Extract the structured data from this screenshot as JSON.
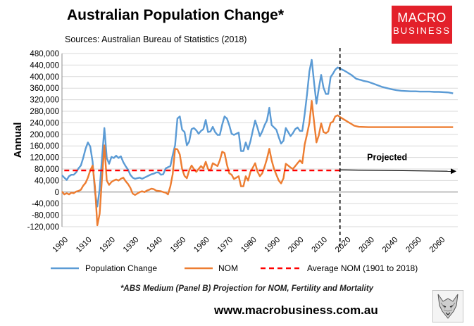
{
  "title": "Australian Population Change*",
  "sources": "Sources: Australian Bureau of Statistics (2018)",
  "logo": {
    "line1": "MACRO",
    "line2": "BUSINESS",
    "color": "#e3202a"
  },
  "footnote": "*ABS Medium (Panel B) Projection for NOM, Fertility and Mortality",
  "url": "www.macrobusiness.com.au",
  "chart_data": {
    "type": "line",
    "ylabel": "Annual",
    "xlim": [
      1900,
      2068
    ],
    "ylim": [
      -120000,
      480000
    ],
    "yticks": [
      -120000,
      -80000,
      -40000,
      0,
      40000,
      80000,
      120000,
      160000,
      200000,
      240000,
      280000,
      320000,
      360000,
      400000,
      440000,
      480000
    ],
    "ytick_labels": [
      "-120,000",
      "-80,000",
      "-40,000",
      "0",
      "40,000",
      "80,000",
      "120,000",
      "160,000",
      "200,000",
      "240,000",
      "280,000",
      "320,000",
      "360,000",
      "400,000",
      "440,000",
      "480,000"
    ],
    "xticks": [
      1900,
      1910,
      1920,
      1930,
      1940,
      1950,
      1960,
      1970,
      1980,
      1990,
      2000,
      2010,
      2020,
      2030,
      2040,
      2050,
      2060
    ],
    "grid": true,
    "legend_placement": "bottom",
    "vertical_line_year": 2018,
    "annotation": {
      "text": "Projected",
      "arrow_from": [
        2018,
        72000
      ],
      "arrow_to": [
        2068,
        72000
      ]
    },
    "series": [
      {
        "name": "Population Change",
        "color": "#5b9bd5",
        "x": [
          1900,
          1901,
          1902,
          1903,
          1904,
          1905,
          1906,
          1907,
          1908,
          1909,
          1910,
          1911,
          1912,
          1913,
          1914,
          1915,
          1916,
          1917,
          1918,
          1919,
          1920,
          1921,
          1922,
          1923,
          1924,
          1925,
          1926,
          1927,
          1928,
          1929,
          1930,
          1931,
          1932,
          1933,
          1934,
          1935,
          1936,
          1937,
          1938,
          1939,
          1940,
          1941,
          1942,
          1943,
          1944,
          1945,
          1946,
          1947,
          1948,
          1949,
          1950,
          1951,
          1952,
          1953,
          1954,
          1955,
          1956,
          1957,
          1958,
          1959,
          1960,
          1961,
          1962,
          1963,
          1964,
          1965,
          1966,
          1967,
          1968,
          1969,
          1970,
          1971,
          1972,
          1973,
          1974,
          1975,
          1976,
          1977,
          1978,
          1979,
          1980,
          1981,
          1982,
          1983,
          1984,
          1985,
          1986,
          1987,
          1988,
          1989,
          1990,
          1991,
          1992,
          1993,
          1994,
          1995,
          1996,
          1997,
          1998,
          1999,
          2000,
          2001,
          2002,
          2003,
          2004,
          2005,
          2006,
          2007,
          2008,
          2009,
          2010,
          2011,
          2012,
          2013,
          2014,
          2015,
          2016,
          2017,
          2018,
          2019,
          2020,
          2021,
          2022,
          2023,
          2024,
          2025,
          2026,
          2027,
          2028,
          2030,
          2032,
          2034,
          2036,
          2038,
          2040,
          2042,
          2044,
          2046,
          2048,
          2050,
          2052,
          2054,
          2056,
          2058,
          2060,
          2062,
          2064,
          2066
        ],
        "y": [
          58000,
          50000,
          42000,
          55000,
          60000,
          60000,
          68000,
          82000,
          92000,
          118000,
          150000,
          172000,
          158000,
          105000,
          0,
          -50000,
          10000,
          120000,
          222000,
          118000,
          98000,
          122000,
          118000,
          126000,
          118000,
          124000,
          104000,
          90000,
          78000,
          60000,
          50000,
          46000,
          48000,
          50000,
          46000,
          50000,
          54000,
          58000,
          62000,
          64000,
          68000,
          68000,
          60000,
          62000,
          82000,
          86000,
          90000,
          128000,
          162000,
          255000,
          262000,
          216000,
          208000,
          162000,
          175000,
          218000,
          222000,
          214000,
          202000,
          212000,
          218000,
          250000,
          208000,
          210000,
          226000,
          208000,
          198000,
          198000,
          234000,
          262000,
          255000,
          232000,
          202000,
          198000,
          202000,
          206000,
          142000,
          142000,
          172000,
          148000,
          176000,
          214000,
          248000,
          222000,
          194000,
          210000,
          232000,
          248000,
          292000,
          232000,
          224000,
          216000,
          190000,
          168000,
          178000,
          222000,
          208000,
          194000,
          204000,
          218000,
          224000,
          212000,
          212000,
          270000,
          338000,
          418000,
          458000,
          380000,
          306000,
          358000,
          406000,
          362000,
          340000,
          340000,
          398000,
          410000,
          424000,
          432000,
          428000,
          424000,
          420000,
          415000,
          410000,
          405000,
          398000,
          392000,
          390000,
          388000,
          385000,
          382000,
          376000,
          370000,
          364000,
          360000,
          356000,
          353000,
          351000,
          350000,
          349000,
          349000,
          348000,
          348000,
          348000,
          347000,
          347000,
          346000,
          345000,
          342000
        ]
      },
      {
        "name": "NOM",
        "color": "#ed7d31",
        "x": [
          1900,
          1901,
          1902,
          1903,
          1904,
          1905,
          1906,
          1907,
          1908,
          1909,
          1910,
          1911,
          1912,
          1913,
          1914,
          1915,
          1916,
          1917,
          1918,
          1919,
          1920,
          1921,
          1922,
          1923,
          1924,
          1925,
          1926,
          1927,
          1928,
          1929,
          1930,
          1931,
          1932,
          1933,
          1934,
          1935,
          1936,
          1937,
          1938,
          1939,
          1940,
          1941,
          1942,
          1943,
          1944,
          1945,
          1946,
          1947,
          1948,
          1949,
          1950,
          1951,
          1952,
          1953,
          1954,
          1955,
          1956,
          1957,
          1958,
          1959,
          1960,
          1961,
          1962,
          1963,
          1964,
          1965,
          1966,
          1967,
          1968,
          1969,
          1970,
          1971,
          1972,
          1973,
          1974,
          1975,
          1976,
          1977,
          1978,
          1979,
          1980,
          1981,
          1982,
          1983,
          1984,
          1985,
          1986,
          1987,
          1988,
          1989,
          1990,
          1991,
          1992,
          1993,
          1994,
          1995,
          1996,
          1997,
          1998,
          1999,
          2000,
          2001,
          2002,
          2003,
          2004,
          2005,
          2006,
          2007,
          2008,
          2009,
          2010,
          2011,
          2012,
          2013,
          2014,
          2015,
          2016,
          2017,
          2018,
          2019,
          2020,
          2021,
          2022,
          2023,
          2024,
          2026,
          2030,
          2035,
          2040,
          2045,
          2050,
          2055,
          2060,
          2066
        ],
        "y": [
          2000,
          -8000,
          -4000,
          -8000,
          -2000,
          -4000,
          2000,
          4000,
          8000,
          22000,
          32000,
          50000,
          75000,
          92000,
          20000,
          -115000,
          -75000,
          50000,
          162000,
          40000,
          25000,
          35000,
          40000,
          44000,
          40000,
          46000,
          50000,
          38000,
          28000,
          15000,
          -5000,
          -10000,
          -5000,
          0,
          3000,
          0,
          5000,
          8000,
          12000,
          10000,
          5000,
          4000,
          3000,
          0,
          -2000,
          -8000,
          20000,
          62000,
          150000,
          148000,
          130000,
          80000,
          56000,
          48000,
          75000,
          92000,
          80000,
          70000,
          80000,
          90000,
          82000,
          105000,
          80000,
          75000,
          100000,
          95000,
          90000,
          110000,
          140000,
          135000,
          95000,
          65000,
          60000,
          45000,
          50000,
          55000,
          20000,
          20000,
          55000,
          40000,
          70000,
          85000,
          100000,
          70000,
          55000,
          65000,
          88000,
          115000,
          150000,
          110000,
          80000,
          60000,
          40000,
          30000,
          48000,
          98000,
          92000,
          85000,
          80000,
          90000,
          100000,
          110000,
          100000,
          165000,
          200000,
          240000,
          316000,
          244000,
          172000,
          196000,
          238000,
          208000,
          204000,
          210000,
          240000,
          244000,
          262000,
          266000,
          260000,
          255000,
          250000,
          245000,
          240000,
          235000,
          230000,
          226000,
          225000,
          225000,
          225000,
          225000,
          225000,
          225000,
          225000,
          225000
        ]
      },
      {
        "name": "Average NOM (1901 to 2018)",
        "color": "#ff0000",
        "dashed": true,
        "x": [
          1901,
          2018
        ],
        "y": [
          75000,
          75000
        ]
      }
    ]
  }
}
